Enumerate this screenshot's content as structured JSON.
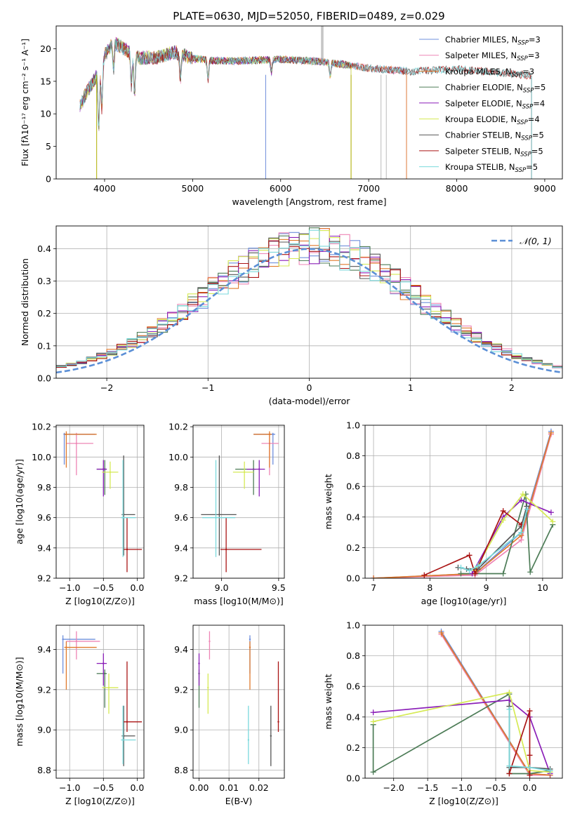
{
  "figure_title": "PLATE=0630, MJD=52050, FIBERID=0489, z=0.029",
  "colors": {
    "Chabrier MILES": "#6f8fdc",
    "Salpeter MILES": "#ee85b5",
    "Kroupa MILES": "#e07a2c",
    "Chabrier ELODIE": "#4d7c57",
    "Salpeter ELODIE": "#8b1fb8",
    "Kroupa ELODIE": "#d6ea55",
    "Chabrier STELIB": "#555555",
    "Salpeter STELIB": "#aa1515",
    "Kroupa STELIB": "#7ad9dc"
  },
  "chart_data": [
    {
      "id": "spectrum",
      "type": "line",
      "title": "",
      "xlabel": "wavelength [Angstrom, rest frame]",
      "ylabel": "Flux [fλ10⁻¹⁷ erg cm⁻² s⁻¹ A⁻¹]",
      "xlim": [
        3450,
        9200
      ],
      "ylim": [
        0,
        23.5
      ],
      "xticks": [
        4000,
        5000,
        6000,
        7000,
        8000,
        9000
      ],
      "yticks": [
        0,
        5,
        10,
        15,
        20
      ],
      "grid": false,
      "legend_position": "top-right",
      "spectrum_knots": {
        "x": [
          3700,
          3800,
          3900,
          4000,
          4100,
          4200,
          4400,
          4600,
          4800,
          5000,
          5200,
          5500,
          6000,
          6500,
          7000,
          7500,
          8000,
          8500,
          8900
        ],
        "y": [
          10.5,
          13.5,
          15.5,
          19.0,
          21.0,
          20.2,
          18.6,
          18.7,
          19.5,
          18.5,
          18.2,
          18.1,
          18.4,
          18.0,
          17.0,
          16.5,
          16.9,
          16.3,
          15.8
        ]
      },
      "series": [
        {
          "name": "Chabrier MILES, N_SSP=3",
          "end_x": 7430
        },
        {
          "name": "Salpeter MILES, N_SSP=3",
          "end_x": 7430
        },
        {
          "name": "Kroupa MILES, N_SSP=3",
          "end_x": 7430
        },
        {
          "name": "Chabrier ELODIE, N_SSP=5",
          "end_x": 6800
        },
        {
          "name": "Salpeter ELODIE, N_SSP=4",
          "end_x": 6800
        },
        {
          "name": "Kroupa ELODIE, N_SSP=4",
          "end_x": 6800
        },
        {
          "name": "Chabrier STELIB, N_SSP=5",
          "end_x": 8850
        },
        {
          "name": "Salpeter STELIB, N_SSP=5",
          "end_x": 8850
        },
        {
          "name": "Kroupa STELIB, N_SSP=5",
          "end_x": 8850
        }
      ]
    },
    {
      "id": "residuals",
      "type": "line",
      "title": "",
      "xlabel": "(data-model)/error",
      "ylabel": "Normed distribution",
      "xlim": [
        -2.5,
        2.5
      ],
      "ylim": [
        0,
        0.47
      ],
      "xticks": [
        -2,
        -1,
        0,
        1,
        2
      ],
      "yticks": [
        0.0,
        0.1,
        0.2,
        0.3,
        0.4
      ],
      "grid": true,
      "legend_position": "top-right",
      "normal_curve_label": "𝒩(0, 1)",
      "bin_width": 0.1
    },
    {
      "id": "age-vs-Z",
      "type": "scatter",
      "xlabel": "Z [log10(Z/Z⊙)]",
      "ylabel": "age  [log10(age/yr)]",
      "xlim": [
        -1.2,
        0.1
      ],
      "ylim": [
        9.2,
        10.21
      ],
      "xticks": [
        -1.0,
        -0.5,
        0.0
      ],
      "yticks": [
        9.2,
        9.4,
        9.6,
        9.8,
        10.0,
        10.2
      ],
      "grid": true,
      "points": [
        {
          "model": "Chabrier MILES",
          "x": -1.08,
          "y": 10.15,
          "x_lo": -1.08,
          "x_hi": -0.62,
          "y_lo": 9.95,
          "y_hi": 10.16
        },
        {
          "model": "Salpeter MILES",
          "x": -0.9,
          "y": 10.09,
          "x_lo": -1.05,
          "x_hi": -0.65,
          "y_lo": 9.88,
          "y_hi": 10.16
        },
        {
          "model": "Kroupa MILES",
          "x": -1.05,
          "y": 10.15,
          "x_lo": -1.08,
          "x_hi": -0.6,
          "y_lo": 9.93,
          "y_hi": 10.17
        },
        {
          "model": "Chabrier ELODIE",
          "x": -0.48,
          "y": 9.92,
          "x_lo": -0.6,
          "x_hi": -0.45,
          "y_lo": 9.75,
          "y_hi": 9.98
        },
        {
          "model": "Salpeter ELODIE",
          "x": -0.5,
          "y": 9.92,
          "x_lo": -0.6,
          "x_hi": -0.45,
          "y_lo": 9.74,
          "y_hi": 9.98
        },
        {
          "model": "Kroupa ELODIE",
          "x": -0.4,
          "y": 9.9,
          "x_lo": -0.52,
          "x_hi": -0.28,
          "y_lo": 9.79,
          "y_hi": 9.97
        },
        {
          "model": "Chabrier STELIB",
          "x": -0.2,
          "y": 9.62,
          "x_lo": -0.23,
          "x_hi": -0.03,
          "y_lo": 9.35,
          "y_hi": 10.01
        },
        {
          "model": "Salpeter STELIB",
          "x": -0.15,
          "y": 9.39,
          "x_lo": -0.2,
          "x_hi": 0.07,
          "y_lo": 9.24,
          "y_hi": 9.6
        },
        {
          "model": "Kroupa STELIB",
          "x": -0.21,
          "y": 9.6,
          "x_lo": -0.24,
          "x_hi": -0.02,
          "y_lo": 9.34,
          "y_hi": 9.98
        }
      ]
    },
    {
      "id": "age-vs-mass",
      "type": "scatter",
      "xlabel": "mass [log10(M/M⊙)]",
      "ylabel": "",
      "xlim": [
        8.75,
        9.55
      ],
      "ylim": [
        9.2,
        10.21
      ],
      "xticks": [
        9.0,
        9.5
      ],
      "yticks": [
        9.2,
        9.4,
        9.6,
        9.8,
        10.0,
        10.2
      ],
      "grid": true,
      "points": [
        {
          "model": "Chabrier MILES",
          "x": 9.45,
          "y": 10.15,
          "x_lo": 9.28,
          "x_hi": 9.47,
          "y_lo": 9.95,
          "y_hi": 10.16
        },
        {
          "model": "Salpeter MILES",
          "x": 9.42,
          "y": 10.09,
          "x_lo": 9.35,
          "x_hi": 9.5,
          "y_lo": 9.88,
          "y_hi": 10.16
        },
        {
          "model": "Kroupa MILES",
          "x": 9.42,
          "y": 10.15,
          "x_lo": 9.28,
          "x_hi": 9.44,
          "y_lo": 9.93,
          "y_hi": 10.17
        },
        {
          "model": "Chabrier ELODIE",
          "x": 9.28,
          "y": 9.92,
          "x_lo": 9.12,
          "x_hi": 9.3,
          "y_lo": 9.75,
          "y_hi": 9.98
        },
        {
          "model": "Salpeter ELODIE",
          "x": 9.33,
          "y": 9.92,
          "x_lo": 9.22,
          "x_hi": 9.38,
          "y_lo": 9.74,
          "y_hi": 9.98
        },
        {
          "model": "Kroupa ELODIE",
          "x": 9.2,
          "y": 9.9,
          "x_lo": 9.1,
          "x_hi": 9.28,
          "y_lo": 9.79,
          "y_hi": 9.97
        },
        {
          "model": "Chabrier STELIB",
          "x": 8.98,
          "y": 9.62,
          "x_lo": 8.82,
          "x_hi": 9.13,
          "y_lo": 9.35,
          "y_hi": 10.01
        },
        {
          "model": "Salpeter STELIB",
          "x": 9.04,
          "y": 9.39,
          "x_lo": 8.99,
          "x_hi": 9.35,
          "y_lo": 9.24,
          "y_hi": 9.6
        },
        {
          "model": "Kroupa STELIB",
          "x": 8.95,
          "y": 9.6,
          "x_lo": 8.83,
          "x_hi": 9.12,
          "y_lo": 9.34,
          "y_hi": 9.98
        }
      ]
    },
    {
      "id": "weight-vs-age",
      "type": "line",
      "xlabel": "age  [log10(age/yr)]",
      "ylabel": "mass weight",
      "xlim": [
        6.85,
        10.35
      ],
      "ylim": [
        0,
        1.0
      ],
      "xticks": [
        7,
        8,
        9,
        10
      ],
      "yticks": [
        0.0,
        0.2,
        0.4,
        0.6,
        0.8,
        1.0
      ],
      "grid": true,
      "series": [
        {
          "model": "Chabrier MILES",
          "x": [
            7.0,
            8.8,
            9.62,
            10.15
          ],
          "y": [
            0.0,
            0.03,
            0.3,
            0.96
          ]
        },
        {
          "model": "Salpeter MILES",
          "x": [
            7.0,
            8.8,
            9.62,
            10.15
          ],
          "y": [
            0.0,
            0.02,
            0.25,
            0.94
          ]
        },
        {
          "model": "Kroupa MILES",
          "x": [
            7.0,
            8.8,
            9.62,
            10.15
          ],
          "y": [
            0.0,
            0.03,
            0.28,
            0.95
          ]
        },
        {
          "model": "Chabrier ELODIE",
          "x": [
            8.55,
            9.3,
            9.7,
            9.78,
            10.18
          ],
          "y": [
            0.03,
            0.03,
            0.55,
            0.04,
            0.35
          ]
        },
        {
          "model": "Salpeter ELODIE",
          "x": [
            8.75,
            9.3,
            9.62,
            10.15
          ],
          "y": [
            0.03,
            0.4,
            0.51,
            0.43
          ]
        },
        {
          "model": "Kroupa ELODIE",
          "x": [
            8.8,
            9.3,
            9.65,
            10.18
          ],
          "y": [
            0.05,
            0.38,
            0.55,
            0.37
          ]
        },
        {
          "model": "Chabrier STELIB",
          "x": [
            8.5,
            8.65,
            8.85,
            9.62,
            9.72
          ],
          "y": [
            0.07,
            0.06,
            0.06,
            0.34,
            0.47
          ]
        },
        {
          "model": "Salpeter STELIB",
          "x": [
            7.9,
            8.7,
            8.8,
            9.3,
            9.62
          ],
          "y": [
            0.02,
            0.15,
            0.03,
            0.44,
            0.35
          ]
        },
        {
          "model": "Kroupa STELIB",
          "x": [
            8.55,
            8.7,
            8.85,
            9.62,
            9.72
          ],
          "y": [
            0.07,
            0.05,
            0.08,
            0.3,
            0.45
          ]
        }
      ]
    },
    {
      "id": "mass-vs-Z",
      "type": "scatter",
      "xlabel": "Z [log10(Z/Z⊙)]",
      "ylabel": "mass [log10(M/M⊙)]",
      "xlim": [
        -1.2,
        0.1
      ],
      "ylim": [
        8.76,
        9.52
      ],
      "xticks": [
        -1.0,
        -0.5,
        0.0
      ],
      "yticks": [
        8.8,
        9.0,
        9.2,
        9.4
      ],
      "grid": true,
      "points": [
        {
          "model": "Chabrier MILES",
          "x": -1.1,
          "y": 9.45,
          "x_lo": -1.1,
          "x_hi": -0.62,
          "y_lo": 9.28,
          "y_hi": 9.47
        },
        {
          "model": "Salpeter MILES",
          "x": -0.9,
          "y": 9.44,
          "x_lo": -1.05,
          "x_hi": -0.55,
          "y_lo": 9.35,
          "y_hi": 9.49
        },
        {
          "model": "Kroupa MILES",
          "x": -1.05,
          "y": 9.41,
          "x_lo": -1.08,
          "x_hi": -0.6,
          "y_lo": 9.2,
          "y_hi": 9.44
        },
        {
          "model": "Chabrier ELODIE",
          "x": -0.48,
          "y": 9.28,
          "x_lo": -0.6,
          "x_hi": -0.45,
          "y_lo": 9.11,
          "y_hi": 9.3
        },
        {
          "model": "Salpeter ELODIE",
          "x": -0.5,
          "y": 9.33,
          "x_lo": -0.6,
          "x_hi": -0.45,
          "y_lo": 9.22,
          "y_hi": 9.38
        },
        {
          "model": "Kroupa ELODIE",
          "x": -0.42,
          "y": 9.21,
          "x_lo": -0.52,
          "x_hi": -0.28,
          "y_lo": 9.08,
          "y_hi": 9.28
        },
        {
          "model": "Chabrier STELIB",
          "x": -0.2,
          "y": 8.97,
          "x_lo": -0.23,
          "x_hi": -0.03,
          "y_lo": 8.82,
          "y_hi": 9.12
        },
        {
          "model": "Salpeter STELIB",
          "x": -0.15,
          "y": 9.04,
          "x_lo": -0.2,
          "x_hi": 0.07,
          "y_lo": 8.99,
          "y_hi": 9.34
        },
        {
          "model": "Kroupa STELIB",
          "x": -0.21,
          "y": 8.95,
          "x_lo": -0.24,
          "x_hi": -0.02,
          "y_lo": 8.83,
          "y_hi": 9.12
        }
      ]
    },
    {
      "id": "mass-vs-EBV",
      "type": "scatter",
      "xlabel": "E(B-V)",
      "ylabel": "",
      "xlim": [
        -0.002,
        0.0285
      ],
      "ylim": [
        8.76,
        9.52
      ],
      "xticks": [
        0.0,
        0.01,
        0.02
      ],
      "yticks": [
        8.8,
        9.0,
        9.2,
        9.4
      ],
      "grid": true,
      "points": [
        {
          "model": "Chabrier MILES",
          "x": 0.017,
          "y": 9.45,
          "y_lo": 9.28,
          "y_hi": 9.47
        },
        {
          "model": "Salpeter MILES",
          "x": 0.0035,
          "y": 9.44,
          "y_lo": 9.35,
          "y_hi": 9.49
        },
        {
          "model": "Kroupa MILES",
          "x": 0.017,
          "y": 9.41,
          "y_lo": 9.2,
          "y_hi": 9.44
        },
        {
          "model": "Chabrier ELODIE",
          "x": 0.0,
          "y": 9.28,
          "y_lo": 9.11,
          "y_hi": 9.3
        },
        {
          "model": "Salpeter ELODIE",
          "x": 0.0,
          "y": 9.33,
          "y_lo": 9.22,
          "y_hi": 9.38
        },
        {
          "model": "Kroupa ELODIE",
          "x": 0.003,
          "y": 9.21,
          "y_lo": 9.08,
          "y_hi": 9.28
        },
        {
          "model": "Chabrier STELIB",
          "x": 0.024,
          "y": 8.97,
          "y_lo": 8.82,
          "y_hi": 9.12
        },
        {
          "model": "Salpeter STELIB",
          "x": 0.0265,
          "y": 9.04,
          "y_lo": 8.99,
          "y_hi": 9.34
        },
        {
          "model": "Kroupa STELIB",
          "x": 0.0165,
          "y": 8.95,
          "y_lo": 8.83,
          "y_hi": 9.12
        }
      ]
    },
    {
      "id": "weight-vs-Z",
      "type": "line",
      "xlabel": "Z [log10(Z/Z⊙)]",
      "ylabel": "mass weight",
      "xlim": [
        -2.42,
        0.48
      ],
      "ylim": [
        0,
        1.0
      ],
      "xticks": [
        -2.0,
        -1.5,
        -1.0,
        -0.5,
        0.0
      ],
      "yticks": [
        0.0,
        0.2,
        0.4,
        0.6,
        0.8,
        1.0
      ],
      "grid": true,
      "series": [
        {
          "model": "Chabrier MILES",
          "x": [
            -1.3,
            0.0,
            0.3
          ],
          "y": [
            0.96,
            0.03,
            0.02
          ]
        },
        {
          "model": "Salpeter MILES",
          "x": [
            -1.3,
            0.0,
            0.3
          ],
          "y": [
            0.94,
            0.02,
            0.02
          ]
        },
        {
          "model": "Kroupa MILES",
          "x": [
            -1.3,
            0.0,
            0.3
          ],
          "y": [
            0.95,
            0.03,
            0.02
          ]
        },
        {
          "model": "Chabrier ELODIE",
          "x": [
            -2.3,
            -2.3,
            -0.3,
            -0.3,
            0.0,
            0.0,
            0.3
          ],
          "y": [
            0.35,
            0.04,
            0.55,
            0.03,
            0.03,
            0.03,
            0.05
          ]
        },
        {
          "model": "Salpeter ELODIE",
          "x": [
            -2.3,
            -0.3,
            0.0,
            0.3
          ],
          "y": [
            0.43,
            0.51,
            0.4,
            0.03
          ]
        },
        {
          "model": "Kroupa ELODIE",
          "x": [
            -2.3,
            -0.3,
            0.0,
            0.3
          ],
          "y": [
            0.37,
            0.56,
            0.05,
            0.04
          ]
        },
        {
          "model": "Chabrier STELIB",
          "x": [
            -0.3,
            -0.3,
            0.0,
            0.3
          ],
          "y": [
            0.47,
            0.07,
            0.07,
            0.06
          ]
        },
        {
          "model": "Salpeter STELIB",
          "x": [
            -0.3,
            0.0,
            0.0,
            0.0
          ],
          "y": [
            0.03,
            0.44,
            0.15,
            0.02
          ]
        },
        {
          "model": "Kroupa STELIB",
          "x": [
            -0.3,
            -0.3,
            0.0,
            0.3
          ],
          "y": [
            0.45,
            0.08,
            0.07,
            0.05
          ]
        }
      ]
    }
  ]
}
